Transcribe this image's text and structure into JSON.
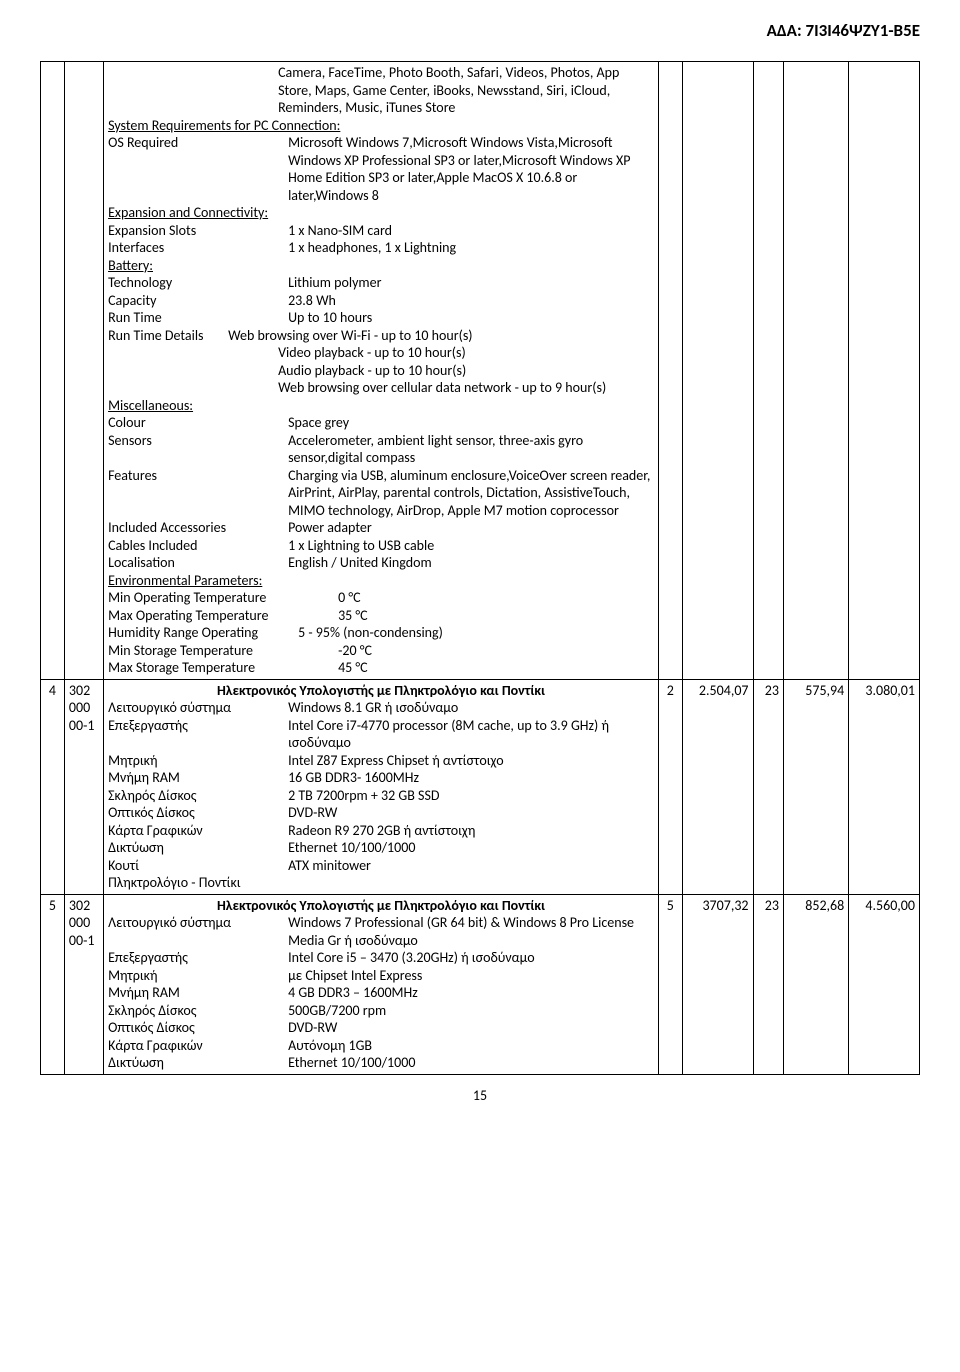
{
  "header_code": "ΑΔΑ: 7Ι3Ι46ΨΖΥ1-Β5Ε",
  "page_number": "15",
  "row3": {
    "intro": "Camera, FaceTime, Photo Booth, Safari, Videos, Photos, App Store, Maps, Game Center, iBooks, Newsstand, Siri, iCloud, Reminders, Music, iTunes Store",
    "sys_req_title": "System Requirements for PC Connection:",
    "os_req_label": "OS Required",
    "os_req_val": "Microsoft Windows 7,Microsoft Windows Vista,Microsoft Windows XP Professional SP3 or later,Microsoft Windows XP Home Edition SP3 or later,Apple MacOS X 10.6.8 or later,Windows 8",
    "exp_title": "Expansion and Connectivity:",
    "exp_slots_label": "Expansion Slots",
    "exp_slots_val": "1 x Nano-SIM card",
    "interfaces_label": "Interfaces",
    "interfaces_val": "1 x headphones, 1 x Lightning",
    "battery_title": "Battery:",
    "tech_label": "Technology",
    "tech_val": "Lithium polymer",
    "cap_label": "Capacity",
    "cap_val": "23.8 Wh",
    "runtime_label": "Run Time",
    "runtime_val": "Up to 10 hours",
    "runtime_details_label": "Run Time Details",
    "runtime_details_1": "Web browsing over Wi-Fi - up to 10 hour(s)",
    "runtime_details_2": "Video playback - up to 10 hour(s)",
    "runtime_details_3": "Audio playback - up to 10 hour(s)",
    "runtime_details_4": "Web browsing over cellular data network - up to 9 hour(s)",
    "misc_title": "Miscellaneous:",
    "colour_label": "Colour",
    "colour_val": "Space grey",
    "sensors_label": "Sensors",
    "sensors_val": "Accelerometer, ambient light sensor, three-axis gyro sensor,digital compass",
    "features_label": "Features",
    "features_val": "Charging via USB, aluminum enclosure,VoiceOver screen reader, AirPrint, AirPlay, parental controls, Dictation, AssistiveTouch, MIMO technology, AirDrop, Apple M7 motion coprocessor",
    "inc_acc_label": "Included Accessories",
    "inc_acc_val": "Power adapter",
    "cables_label": "Cables Included",
    "cables_val": "1 x Lightning to USB cable",
    "local_label": "Localisation",
    "local_val": "English / United Kingdom",
    "env_title": "Environmental Parameters:",
    "min_op_label": "Min Operating Temperature",
    "min_op_val": "0 °C",
    "max_op_label": "Max Operating Temperature",
    "max_op_val": "35 °C",
    "humidity_label": "Humidity Range Operating",
    "humidity_val": "5 - 95% (non-condensing)",
    "min_st_label": "Min Storage Temperature",
    "min_st_val": "-20 °C",
    "max_st_label": "Max Storage Temperature",
    "max_st_val": "45 °C"
  },
  "row4": {
    "idx": "4",
    "code": "302 000 00-1",
    "title": "Ηλεκτρονικός Υπολογιστής με Πληκτρολόγιο και Ποντίκι",
    "os_label": "Λειτουργικό σύστημα",
    "os_val": "Windows 8.1 GR ή ισοδύναμο",
    "cpu_label": "Επεξεργαστής",
    "cpu_val": "Intel Core i7-4770 processor (8M cache, up to 3.9 GHz) ή ισοδύναμο",
    "mb_label": "Μητρική",
    "mb_val": "Intel Z87 Express Chipset ή αντίστοιχο",
    "ram_label": "Μνήμη RAM",
    "ram_val": "16 GB DDR3- 1600MHz",
    "hdd_label": "Σκληρός Δίσκος",
    "hdd_val": "2 TB 7200rpm + 32 GB SSD",
    "odd_label": "Οπτικός Δίσκος",
    "odd_val": "DVD-RW",
    "gpu_label": "Κάρτα Γραφικών",
    "gpu_val": "Radeon R9 270 2GB ή αντίστοιχη",
    "net_label": "Δικτύωση",
    "net_val": "Ethernet 10/100/1000",
    "case_label": "Κουτί",
    "case_val": "ATX minitower",
    "kb": "Πληκτρολόγιο - Ποντίκι",
    "n": "2",
    "p1": "2.504,07",
    "pct": "23",
    "p2": "575,94",
    "total": "3.080,01"
  },
  "row5": {
    "idx": "5",
    "code": "302 000 00-1",
    "title": "Ηλεκτρονικός Υπολογιστής με Πληκτρολόγιο και Ποντίκι",
    "os_label": "Λειτουργικό σύστημα",
    "os_val": "Windows 7 Professional (GR 64 bit)  & Windows 8 Pro License Media Gr ή ισοδύναμο",
    "cpu_label": "Επεξεργαστής",
    "cpu_val": "Intel Core i5 – 3470 (3.20GHz) ή ισοδύναμο",
    "mb_label": "Μητρική",
    "mb_val": "με Chipset Intel Express",
    "ram_label": "Μνήμη RAM",
    "ram_val": "4 GB DDR3 – 1600MHz",
    "hdd_label": "Σκληρός Δίσκος",
    "hdd_val": "500GB/7200 rpm",
    "odd_label": "Οπτικός Δίσκος",
    "odd_val": "DVD-RW",
    "gpu_label": "Κάρτα Γραφικών",
    "gpu_val": "Αυτόνομη 1GB",
    "net_label": "Δικτύωση",
    "net_val": "Ethernet 10/100/1000",
    "n": "5",
    "p1": "3707,32",
    "pct": "23",
    "p2": "852,68",
    "total": "4.560,00"
  }
}
